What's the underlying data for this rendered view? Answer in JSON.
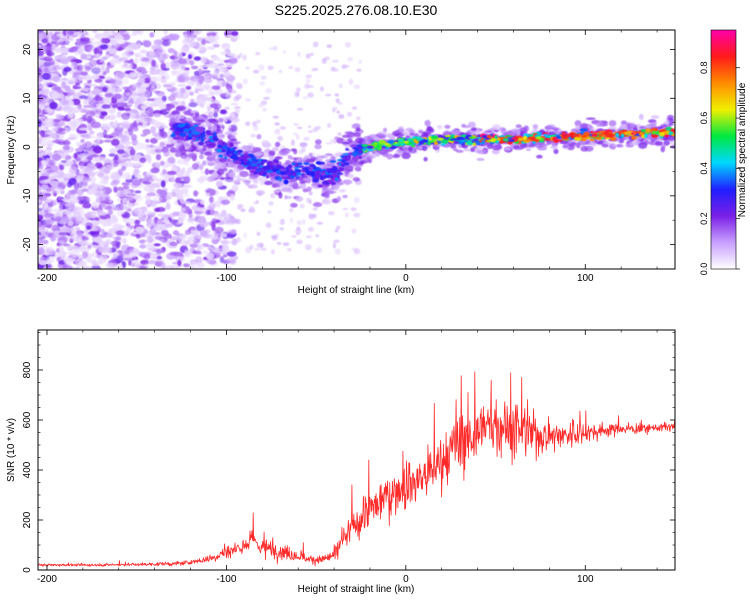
{
  "figure": {
    "title": "S225.2025.276.08.10.E30"
  },
  "chart_data": [
    {
      "type": "heatmap",
      "title": "S225.2025.276.08.10.E30",
      "xlabel": "Height of straight line (km)",
      "ylabel": "Frequency (Hz)",
      "xlim": [
        -205,
        150
      ],
      "ylim": [
        -25,
        24
      ],
      "xticks": [
        -200,
        -100,
        0,
        100
      ],
      "xtick_labels": [
        "-200",
        "-100",
        "0",
        "100"
      ],
      "yticks": [
        -20,
        -10,
        0,
        10,
        20
      ],
      "ytick_labels": [
        "-20",
        "-10",
        "0",
        "10",
        "20"
      ],
      "colorbar": {
        "label": "Normalized spectral amplitude",
        "range": [
          0,
          0.95
        ],
        "ticks": [
          0,
          0.2,
          0.4,
          0.6,
          0.8
        ],
        "tick_labels": [
          "0.0",
          "0.2",
          "0.4",
          "0.6",
          "0.8"
        ],
        "colors": [
          "#ffffff",
          "#c8a0ff",
          "#7a1fe6",
          "#1f1fff",
          "#00d8ff",
          "#00e840",
          "#f0f000",
          "#ff8c00",
          "#ff1a1a",
          "#ff00aa"
        ]
      },
      "ridge": {
        "description": "frequency of peak spectral amplitude vs height",
        "x": [
          -130,
          -110,
          -95,
          -80,
          -65,
          -55,
          -45,
          -38,
          -30,
          -20,
          -10,
          0,
          20,
          40,
          60,
          80,
          100,
          120,
          145
        ],
        "y": [
          4,
          2,
          -2,
          -4,
          -5,
          -5,
          -6,
          -5,
          -1,
          0,
          0.5,
          1,
          1.5,
          1.6,
          1.7,
          2,
          2.3,
          2.6,
          3
        ]
      }
    },
    {
      "type": "line",
      "xlabel": "Height of straight line (km)",
      "ylabel": "SNR (10 * v/v)",
      "xlim": [
        -205,
        150
      ],
      "ylim": [
        0,
        960
      ],
      "xticks": [
        -200,
        -100,
        0,
        100
      ],
      "xtick_labels": [
        "-200",
        "-100",
        "0",
        "100"
      ],
      "yticks": [
        0,
        200,
        400,
        600,
        800
      ],
      "ytick_labels": [
        "0",
        "200",
        "400",
        "600",
        "800"
      ],
      "series": [
        {
          "name": "SNR",
          "color": "#ff2a2a",
          "x": [
            -205,
            -180,
            -150,
            -130,
            -120,
            -110,
            -100,
            -90,
            -85,
            -80,
            -70,
            -60,
            -55,
            -50,
            -45,
            -40,
            -35,
            -30,
            -20,
            -10,
            0,
            10,
            20,
            30,
            40,
            50,
            60,
            70,
            80,
            90,
            100,
            110,
            120,
            130,
            140,
            150
          ],
          "y": [
            20,
            20,
            22,
            25,
            30,
            45,
            70,
            100,
            120,
            90,
            75,
            60,
            45,
            40,
            45,
            60,
            110,
            170,
            240,
            300,
            340,
            370,
            430,
            500,
            560,
            580,
            560,
            540,
            540,
            540,
            550,
            560,
            565,
            565,
            570,
            575
          ],
          "noise": [
            8,
            8,
            10,
            12,
            15,
            25,
            40,
            60,
            70,
            55,
            50,
            40,
            30,
            25,
            30,
            45,
            70,
            100,
            120,
            140,
            160,
            170,
            180,
            190,
            200,
            190,
            160,
            130,
            100,
            80,
            60,
            45,
            35,
            30,
            25,
            25
          ]
        }
      ]
    }
  ]
}
